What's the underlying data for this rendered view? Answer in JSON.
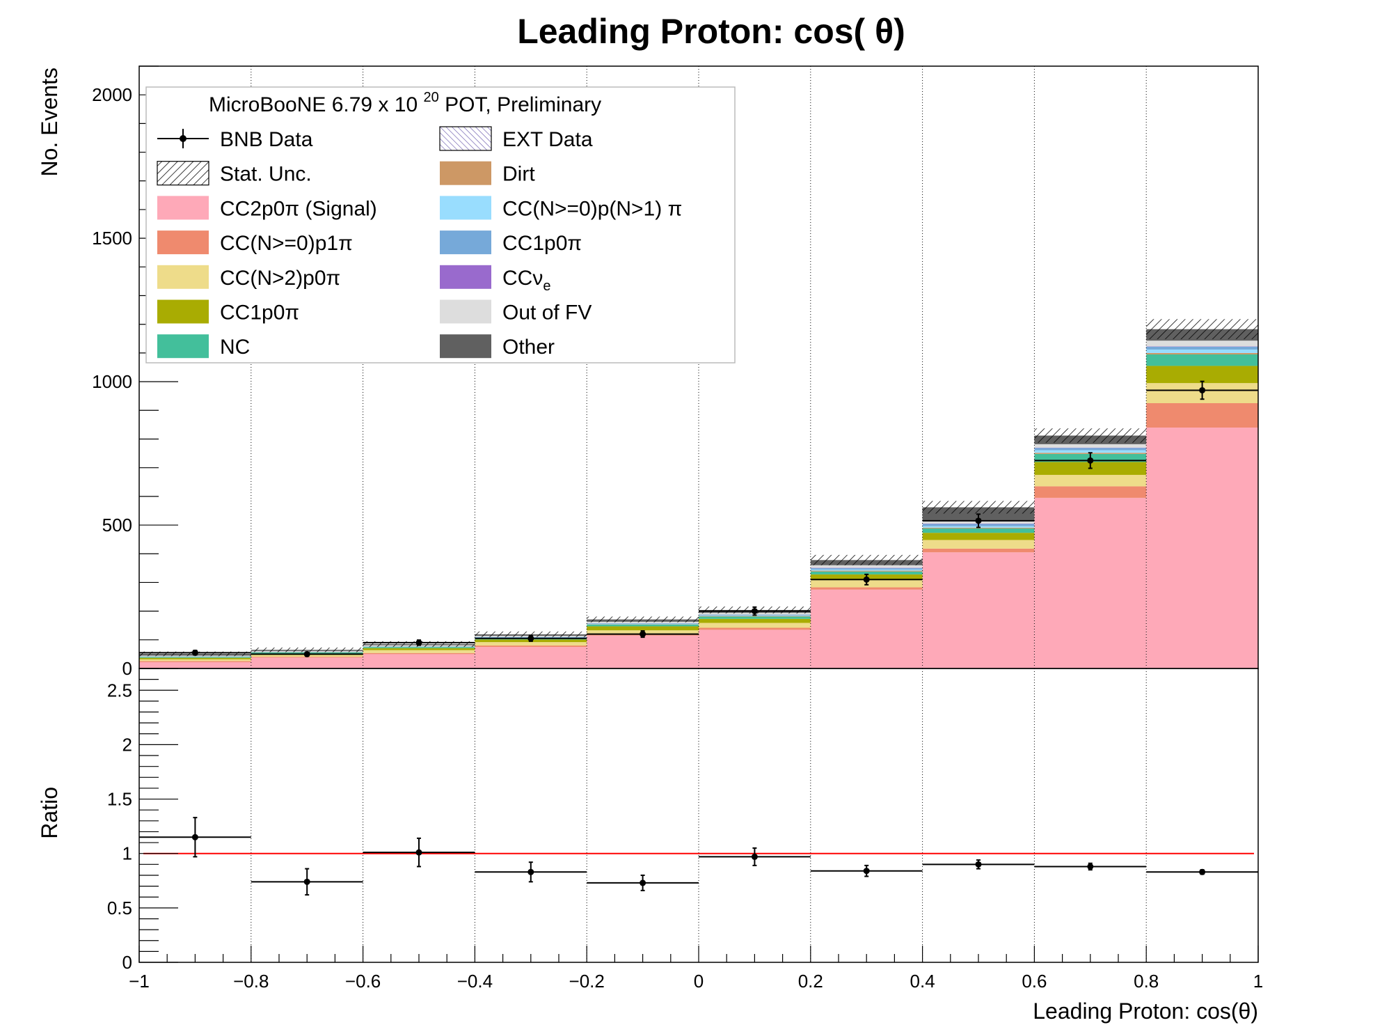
{
  "chart_data": [
    {
      "panel": "main",
      "type": "stacked-histogram",
      "title": "Leading Proton: cos( θ)",
      "ylabel": "No. Events",
      "xlabel": "",
      "xlim": [
        -1,
        1
      ],
      "ylim": [
        0,
        2100
      ],
      "x_edges": [
        -1,
        -0.8,
        -0.6,
        -0.4,
        -0.2,
        0,
        0.2,
        0.4,
        0.6,
        0.8,
        1
      ],
      "y_ticks": [
        "0",
        "500",
        "1000",
        "1500",
        "2000"
      ],
      "y_tick_values": [
        0,
        500,
        1000,
        1500,
        2000
      ],
      "grid_x": true,
      "legend": {
        "placement": "top-left",
        "header": "MicroBooNE 6.79 x 10",
        "header_sup": "20",
        "header_tail": "POT, Preliminary"
      },
      "series": [
        {
          "name": "CC2p0π (Signal)",
          "color": "#FEA9B8",
          "values": [
            22,
            38,
            50,
            75,
            115,
            135,
            275,
            405,
            595,
            840
          ]
        },
        {
          "name": "CC(N>=0)p1π",
          "color": "#EF8A6E",
          "values": [
            4,
            3,
            4,
            5,
            6,
            7,
            8,
            13,
            40,
            85
          ]
        },
        {
          "name": "CC(N>2)p0π",
          "color": "#EEDC8A",
          "values": [
            6,
            6,
            10,
            12,
            12,
            17,
            25,
            30,
            40,
            70
          ]
        },
        {
          "name": "CC1p0π",
          "color": "#A9AC02",
          "values": [
            5,
            5,
            7,
            9,
            14,
            14,
            20,
            25,
            45,
            60
          ]
        },
        {
          "name": "NC",
          "color": "#43BF9B",
          "values": [
            3,
            4,
            4,
            4,
            6,
            8,
            10,
            15,
            28,
            40
          ]
        },
        {
          "name": "Dirt",
          "color": "#CD9865",
          "values": [
            1,
            1,
            1,
            1,
            1,
            2,
            3,
            3,
            4,
            5
          ]
        },
        {
          "name": "CC(N>=0)p(N>1) π",
          "color": "#99DDFE",
          "values": [
            1,
            1,
            1,
            2,
            2,
            2,
            4,
            5,
            9,
            12
          ]
        },
        {
          "name": "CC1p0π",
          "color": "#76A9D9",
          "values": [
            1,
            1,
            1,
            2,
            2,
            3,
            5,
            8,
            8,
            10
          ]
        },
        {
          "name": "CCν",
          "name_sub": "e",
          "color": "#996ACD",
          "values": [
            0,
            0,
            0,
            0,
            0,
            0,
            1,
            1,
            1,
            1
          ]
        },
        {
          "name": "Out of FV",
          "color": "#DDDDDD",
          "values": [
            2,
            2,
            3,
            4,
            5,
            6,
            9,
            12,
            12,
            20
          ]
        },
        {
          "name": "Other",
          "color": "#606060",
          "values": [
            6,
            4,
            4,
            5,
            8,
            10,
            18,
            45,
            30,
            40
          ]
        },
        {
          "name": "EXT Data",
          "color": "#6655AA",
          "values": [
            0,
            0,
            0,
            0,
            0,
            0,
            0,
            0,
            0,
            0
          ]
        }
      ],
      "stat_unc": {
        "name": "Stat. Unc.",
        "values": [
          8,
          8,
          10,
          10,
          10,
          12,
          18,
          22,
          25,
          35
        ]
      },
      "data": {
        "name": "BNB Data",
        "x": [
          -0.9,
          -0.7,
          -0.5,
          -0.3,
          -0.1,
          0.1,
          0.3,
          0.5,
          0.7,
          0.9
        ],
        "y": [
          55,
          50,
          90,
          105,
          120,
          200,
          310,
          515,
          725,
          970
        ],
        "yerr": [
          8,
          7,
          9,
          10,
          11,
          14,
          18,
          23,
          27,
          31
        ]
      }
    },
    {
      "panel": "ratio",
      "type": "scatter",
      "ylabel": "Ratio",
      "xlabel": "Leading Proton: cos(θ)",
      "xlim": [
        -1,
        1
      ],
      "ylim": [
        0,
        2.7
      ],
      "y_ticks": [
        "0",
        "0.5",
        "1",
        "1.5",
        "2",
        "2.5"
      ],
      "y_tick_values": [
        0,
        0.5,
        1,
        1.5,
        2,
        2.5
      ],
      "x_ticks": [
        "−1",
        "−0.8",
        "−0.6",
        "−0.4",
        "−0.2",
        "0",
        "0.2",
        "0.4",
        "0.6",
        "0.8",
        "1"
      ],
      "x_tick_values": [
        -1,
        -0.8,
        -0.6,
        -0.4,
        -0.2,
        0,
        0.2,
        0.4,
        0.6,
        0.8,
        1
      ],
      "reference_line": 1,
      "reference_color": "#FF0000",
      "x": [
        -0.9,
        -0.7,
        -0.5,
        -0.3,
        -0.1,
        0.1,
        0.3,
        0.5,
        0.7,
        0.9
      ],
      "y": [
        1.15,
        0.74,
        1.01,
        0.83,
        0.73,
        0.97,
        0.84,
        0.9,
        0.88,
        0.83
      ],
      "yerr": [
        0.18,
        0.12,
        0.13,
        0.09,
        0.07,
        0.08,
        0.05,
        0.04,
        0.03,
        0.02
      ]
    }
  ]
}
